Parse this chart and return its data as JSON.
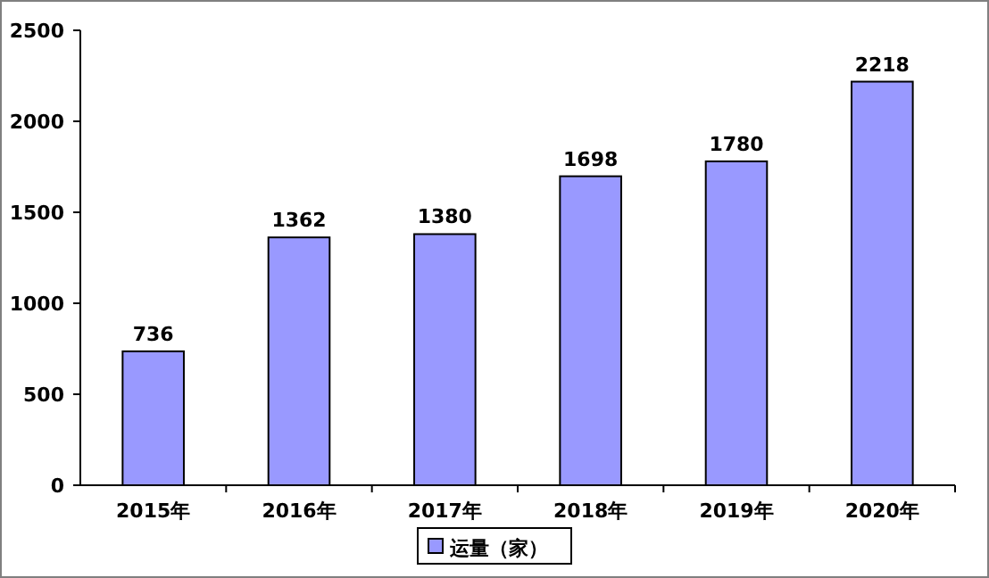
{
  "chart_data": {
    "type": "bar",
    "categories": [
      "2015年",
      "2016年",
      "2017年",
      "2018年",
      "2019年",
      "2020年"
    ],
    "series": [
      {
        "name": "运量（家）",
        "color": "#9999ff",
        "values": [
          736,
          1362,
          1380,
          1698,
          1780,
          2218
        ]
      }
    ],
    "ylim": [
      0,
      2500
    ],
    "yticks": [
      0,
      500,
      1000,
      1500,
      2000,
      2500
    ],
    "data_labels": true,
    "legend": "bottom",
    "grid": false
  }
}
